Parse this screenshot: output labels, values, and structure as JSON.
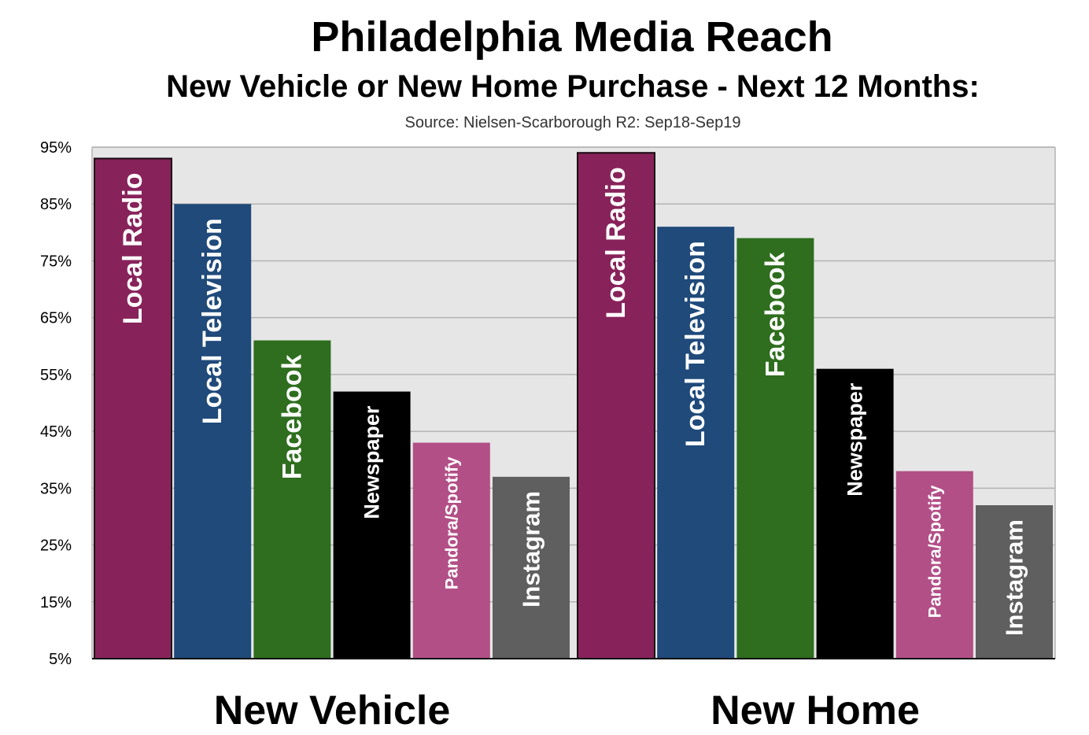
{
  "header": {
    "title": "Philadelphia Media Reach",
    "subtitle": "New Vehicle or New Home Purchase - Next 12 Months:",
    "source": "Source: Nielsen-Scarborough R2: Sep18-Sep19"
  },
  "chart_data": {
    "type": "bar",
    "title": "Philadelphia Media Reach",
    "subtitle": "New Vehicle or New Home Purchase - Next 12 Months:",
    "categories": [
      "New Vehicle",
      "New Home"
    ],
    "series": [
      {
        "name": "Local Radio",
        "values": [
          93,
          94
        ],
        "color": "#87235A"
      },
      {
        "name": "Local Television",
        "values": [
          85,
          81
        ],
        "color": "#1F4A7A"
      },
      {
        "name": "Facebook",
        "values": [
          61,
          79
        ],
        "color": "#2E6E1E"
      },
      {
        "name": "Newspaper",
        "values": [
          52,
          56
        ],
        "color": "#000000"
      },
      {
        "name": "Pandora/Spotify",
        "values": [
          43,
          38
        ],
        "color": "#B24F86"
      },
      {
        "name": "Instagram",
        "values": [
          37,
          32
        ],
        "color": "#5F5F5F"
      }
    ],
    "yticks": [
      "95%",
      "85%",
      "75%",
      "65%",
      "55%",
      "45%",
      "35%",
      "25%",
      "15%",
      "5%"
    ],
    "ylim": [
      5,
      95
    ],
    "grid": true,
    "legend": "none (series names printed inside bars)",
    "background": "#E6E6E6"
  }
}
